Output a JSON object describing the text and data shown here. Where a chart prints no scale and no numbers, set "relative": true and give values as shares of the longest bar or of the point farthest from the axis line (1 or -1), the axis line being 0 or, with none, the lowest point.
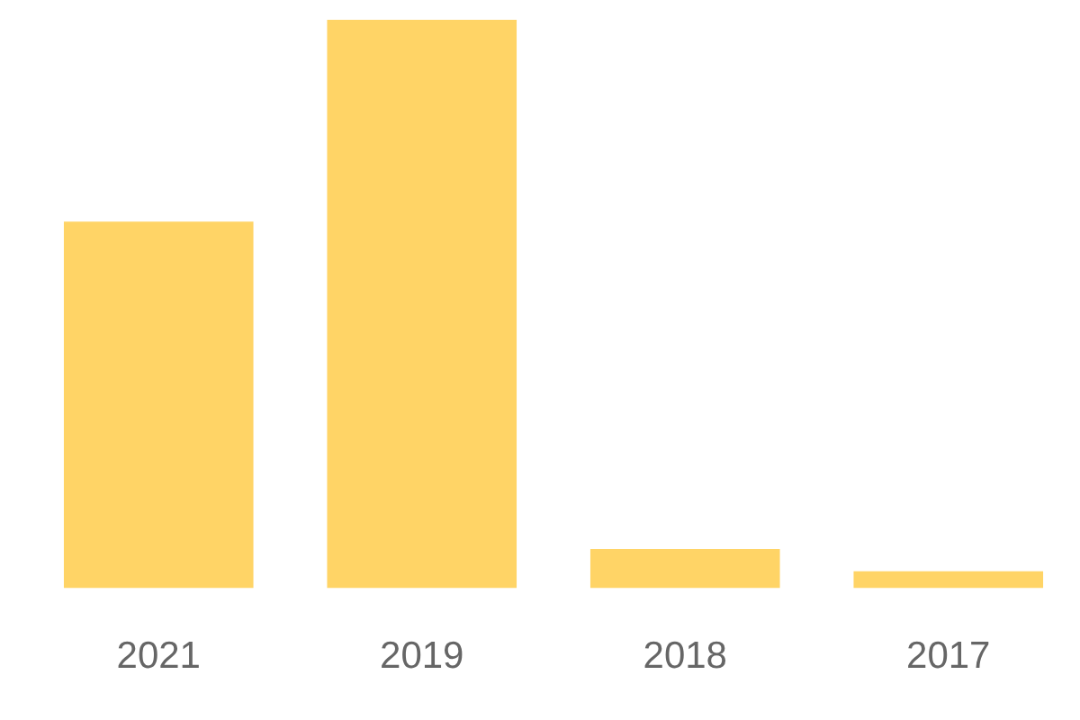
{
  "chart_data": {
    "type": "bar",
    "relative": true,
    "categories": [
      "2021",
      "2019",
      "2018",
      "2017"
    ],
    "values": [
      0.645,
      1,
      0.069,
      0.03
    ],
    "color": "#ffd466",
    "grid": false,
    "legend": false
  }
}
